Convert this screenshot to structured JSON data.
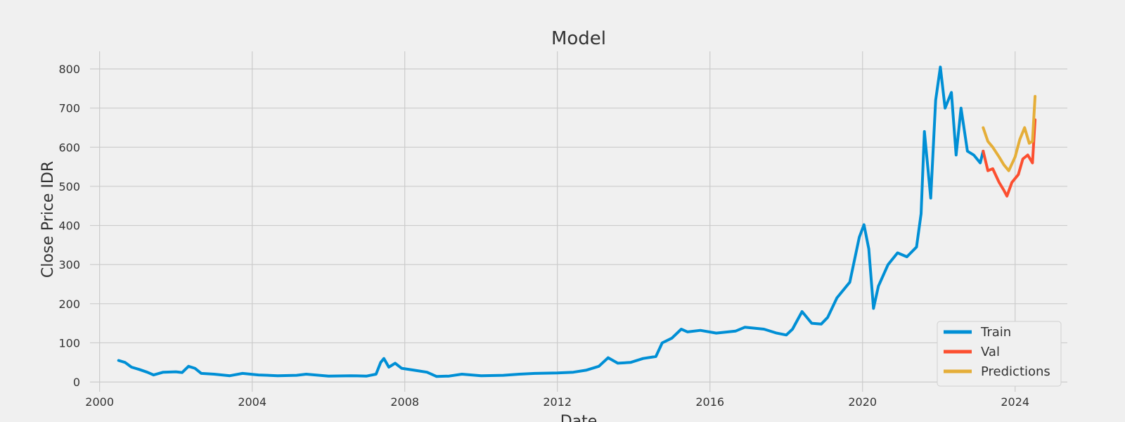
{
  "chart_data": {
    "type": "line",
    "title": "Model",
    "xlabel": "Date",
    "ylabel": "Close Price IDR",
    "x_ticks": [
      "2000",
      "2004",
      "2008",
      "2012",
      "2016",
      "2020",
      "2024"
    ],
    "y_ticks": [
      0,
      100,
      200,
      300,
      400,
      500,
      600,
      700,
      800
    ],
    "xlim": [
      "1999-10-01",
      "2025-05-15"
    ],
    "ylim": [
      -25,
      845
    ],
    "grid": true,
    "legend_position": "bottom-right",
    "series": [
      {
        "name": "Train",
        "color": "#008fd5",
        "points": [
          [
            "2000-07-01",
            55
          ],
          [
            "2000-09-01",
            50
          ],
          [
            "2000-11-01",
            38
          ],
          [
            "2001-01-15",
            32
          ],
          [
            "2001-04-01",
            25
          ],
          [
            "2001-06-01",
            18
          ],
          [
            "2001-09-01",
            25
          ],
          [
            "2002-01-01",
            26
          ],
          [
            "2002-03-01",
            24
          ],
          [
            "2002-05-01",
            40
          ],
          [
            "2002-07-01",
            35
          ],
          [
            "2002-09-01",
            22
          ],
          [
            "2003-01-01",
            20
          ],
          [
            "2003-06-01",
            16
          ],
          [
            "2003-10-01",
            22
          ],
          [
            "2004-03-01",
            18
          ],
          [
            "2004-09-01",
            16
          ],
          [
            "2005-03-01",
            17
          ],
          [
            "2005-06-01",
            20
          ],
          [
            "2006-01-01",
            15
          ],
          [
            "2006-08-01",
            16
          ],
          [
            "2007-01-01",
            15
          ],
          [
            "2007-04-01",
            20
          ],
          [
            "2007-05-15",
            50
          ],
          [
            "2007-06-15",
            60
          ],
          [
            "2007-08-01",
            38
          ],
          [
            "2007-10-01",
            48
          ],
          [
            "2007-12-01",
            35
          ],
          [
            "2008-04-01",
            30
          ],
          [
            "2008-08-01",
            25
          ],
          [
            "2008-11-01",
            14
          ],
          [
            "2009-03-01",
            15
          ],
          [
            "2009-07-01",
            20
          ],
          [
            "2010-01-01",
            16
          ],
          [
            "2010-08-01",
            17
          ],
          [
            "2011-01-01",
            20
          ],
          [
            "2011-06-01",
            22
          ],
          [
            "2012-01-01",
            23
          ],
          [
            "2012-06-01",
            25
          ],
          [
            "2012-10-01",
            30
          ],
          [
            "2013-02-01",
            40
          ],
          [
            "2013-05-01",
            62
          ],
          [
            "2013-08-01",
            48
          ],
          [
            "2013-12-01",
            50
          ],
          [
            "2014-04-01",
            60
          ],
          [
            "2014-08-01",
            65
          ],
          [
            "2014-10-01",
            100
          ],
          [
            "2015-01-01",
            112
          ],
          [
            "2015-04-01",
            135
          ],
          [
            "2015-06-01",
            128
          ],
          [
            "2015-10-01",
            132
          ],
          [
            "2016-03-01",
            125
          ],
          [
            "2016-09-01",
            130
          ],
          [
            "2016-12-01",
            140
          ],
          [
            "2017-06-01",
            135
          ],
          [
            "2017-10-01",
            125
          ],
          [
            "2018-01-01",
            120
          ],
          [
            "2018-03-01",
            135
          ],
          [
            "2018-06-01",
            180
          ],
          [
            "2018-09-01",
            150
          ],
          [
            "2018-12-01",
            148
          ],
          [
            "2019-02-01",
            165
          ],
          [
            "2019-05-01",
            215
          ],
          [
            "2019-09-01",
            255
          ],
          [
            "2019-12-01",
            370
          ],
          [
            "2020-01-15",
            402
          ],
          [
            "2020-03-01",
            340
          ],
          [
            "2020-04-15",
            188
          ],
          [
            "2020-06-01",
            245
          ],
          [
            "2020-09-01",
            300
          ],
          [
            "2020-12-01",
            330
          ],
          [
            "2021-03-01",
            320
          ],
          [
            "2021-06-01",
            345
          ],
          [
            "2021-07-15",
            430
          ],
          [
            "2021-08-15",
            640
          ],
          [
            "2021-10-15",
            470
          ],
          [
            "2021-12-01",
            720
          ],
          [
            "2022-01-15",
            805
          ],
          [
            "2022-03-01",
            700
          ],
          [
            "2022-05-01",
            740
          ],
          [
            "2022-06-15",
            580
          ],
          [
            "2022-08-01",
            700
          ],
          [
            "2022-10-01",
            590
          ],
          [
            "2022-12-01",
            580
          ],
          [
            "2023-02-01",
            560
          ],
          [
            "2023-03-01",
            590
          ]
        ]
      },
      {
        "name": "Val",
        "color": "#fc4f30",
        "points": [
          [
            "2023-03-01",
            590
          ],
          [
            "2023-04-15",
            540
          ],
          [
            "2023-06-01",
            545
          ],
          [
            "2023-08-01",
            510
          ],
          [
            "2023-09-15",
            490
          ],
          [
            "2023-10-15",
            475
          ],
          [
            "2023-12-01",
            510
          ],
          [
            "2024-02-01",
            530
          ],
          [
            "2024-03-15",
            570
          ],
          [
            "2024-05-01",
            580
          ],
          [
            "2024-06-15",
            560
          ],
          [
            "2024-07-10",
            670
          ]
        ]
      },
      {
        "name": "Predictions",
        "color": "#e5ae38",
        "points": [
          [
            "2023-03-01",
            650
          ],
          [
            "2023-04-15",
            615
          ],
          [
            "2023-06-01",
            600
          ],
          [
            "2023-08-01",
            575
          ],
          [
            "2023-09-15",
            555
          ],
          [
            "2023-11-01",
            540
          ],
          [
            "2024-01-01",
            575
          ],
          [
            "2024-02-15",
            620
          ],
          [
            "2024-04-01",
            650
          ],
          [
            "2024-05-15",
            610
          ],
          [
            "2024-06-15",
            615
          ],
          [
            "2024-07-10",
            730
          ]
        ]
      }
    ]
  }
}
